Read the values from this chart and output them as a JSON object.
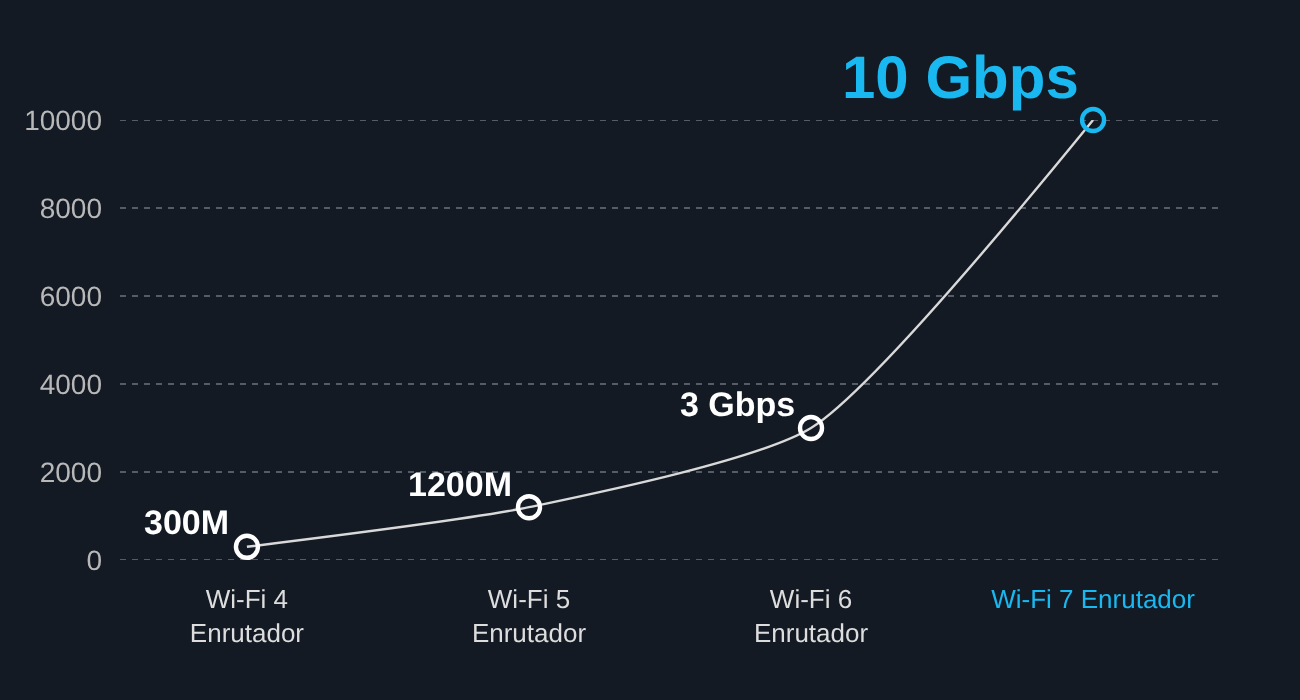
{
  "chart_data": {
    "type": "line",
    "categories": [
      "Wi-Fi 4\nEnrutador",
      "Wi-Fi 5\nEnrutador",
      "Wi-Fi 6\nEnrutador",
      "Wi-Fi 7 Enrutador"
    ],
    "series": [
      {
        "color": "#d9d9d9",
        "values": [
          300,
          1200,
          3000,
          10000
        ],
        "colors": [
          "#ffffff",
          "#ffffff",
          "#ffffff",
          "#1ab8f0"
        ]
      }
    ],
    "annotations": [
      {
        "text": "300M",
        "x": "Wi-Fi 4\nEnrutador",
        "y": 300
      },
      {
        "text": "1200M",
        "x": "Wi-Fi 5\nEnrutador",
        "y": 1200
      },
      {
        "text": "3 Gbps",
        "x": "Wi-Fi 6\nEnrutador",
        "y": 3000
      },
      {
        "text": "10 Gbps",
        "x": "Wi-Fi 7 Enrutador",
        "y": 10000
      }
    ],
    "ylim": [
      0,
      10000
    ],
    "yticks": [
      0,
      2000,
      4000,
      6000,
      8000,
      10000
    ],
    "grid": "y",
    "marker": "circle",
    "line_style": "solid"
  }
}
